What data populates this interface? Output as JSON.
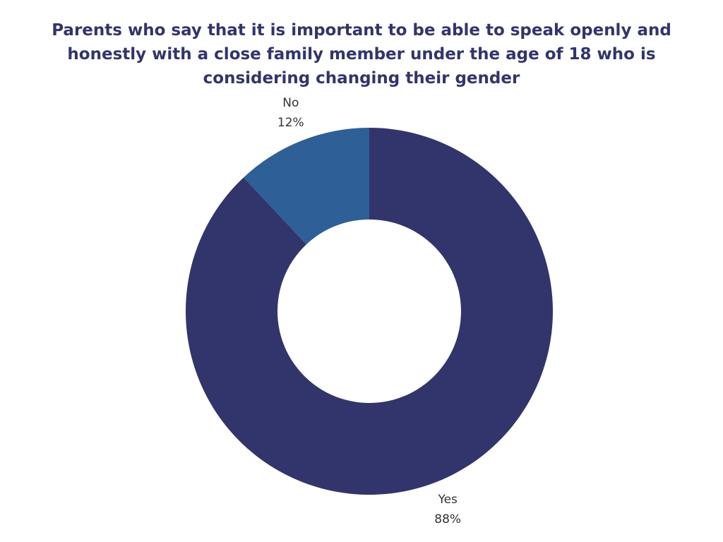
{
  "chart_data": {
    "type": "donut",
    "title": "Parents who say that it is important to be able to speak openly and honestly with a close family member under the age of 18 who is considering changing their gender",
    "categories": [
      "Yes",
      "No"
    ],
    "values": [
      88,
      12
    ],
    "value_labels": [
      "88%",
      "12%"
    ],
    "colors": [
      "#32356b",
      "#2e5f96"
    ]
  }
}
